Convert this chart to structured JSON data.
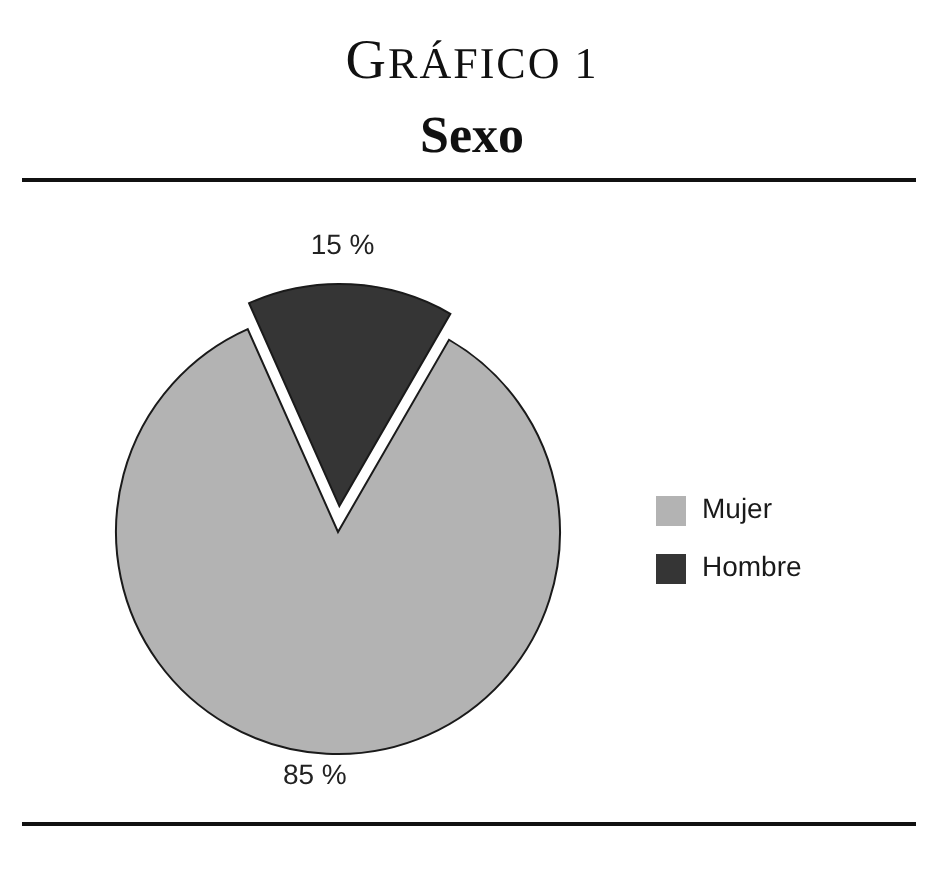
{
  "chart_data": {
    "type": "pie",
    "title": "GRÁFICO 1",
    "subtitle": "Sexo",
    "categories": [
      "Mujer",
      "Hombre"
    ],
    "values": [
      85,
      15
    ],
    "colors": [
      "#b3b3b3",
      "#353535"
    ],
    "value_labels": [
      "85 %",
      "15 %"
    ],
    "legend": "right"
  }
}
